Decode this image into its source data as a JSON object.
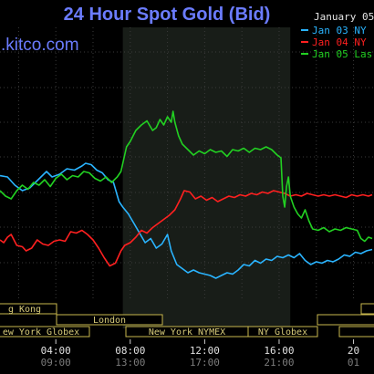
{
  "header": {
    "title": "24 Hour Spot Gold (Bid)",
    "brand": ".kitco.com",
    "date": "January 05"
  },
  "colors": {
    "background": "#000000",
    "title": "#6b7cff",
    "grid": "#3a3a3a",
    "shade": "#1a1f1a",
    "session_border": "#c9b84e",
    "session_text": "#d8cc7a"
  },
  "legend": [
    {
      "label": "Jan 03 NY",
      "color": "#2ab4ff"
    },
    {
      "label": "Jan 04 NY",
      "color": "#ff2020"
    },
    {
      "label": "Jan 05 Las",
      "color": "#22d022"
    }
  ],
  "sessions": [
    {
      "label": "g Kong"
    },
    {
      "label": "ew York Globex"
    },
    {
      "label": "London"
    },
    {
      "label": "New York NYMEX"
    },
    {
      "label": "NY Globex"
    }
  ],
  "chart_data": {
    "type": "line",
    "title": "24 Hour Spot Gold (Bid)",
    "x_unit": "hour of day (primary axis)",
    "xlim": [
      1.0,
      21.1
    ],
    "ylim": [
      0,
      100
    ],
    "y_note": "price axis unlabeled; values are relative",
    "grid": true,
    "legend_position": "top-right",
    "shaded_range": [
      7.6,
      16.6
    ],
    "tick_hours": [
      4,
      8,
      12,
      16,
      20
    ],
    "ticks_primary": [
      "04:00",
      "08:00",
      "12:00",
      "16:00",
      "20"
    ],
    "ticks_secondary": [
      "09:00",
      "13:00",
      "17:00",
      "21:00",
      "01"
    ],
    "series": [
      {
        "name": "Jan 03 NY",
        "color": "#2ab4ff",
        "points": [
          [
            1.0,
            75
          ],
          [
            1.4,
            74
          ],
          [
            1.8,
            68
          ],
          [
            2.2,
            64
          ],
          [
            2.6,
            66
          ],
          [
            2.9,
            70
          ],
          [
            3.2,
            74
          ],
          [
            3.5,
            78
          ],
          [
            3.8,
            74
          ],
          [
            4.2,
            76
          ],
          [
            4.6,
            80
          ],
          [
            5.0,
            79
          ],
          [
            5.4,
            82
          ],
          [
            5.6,
            84
          ],
          [
            5.9,
            83
          ],
          [
            6.2,
            79
          ],
          [
            6.5,
            77
          ],
          [
            6.8,
            72
          ],
          [
            7.1,
            70
          ],
          [
            7.4,
            56
          ],
          [
            7.6,
            52
          ],
          [
            7.9,
            47
          ],
          [
            8.2,
            40
          ],
          [
            8.5,
            33
          ],
          [
            8.8,
            26
          ],
          [
            9.1,
            29
          ],
          [
            9.4,
            22
          ],
          [
            9.7,
            25
          ],
          [
            10.0,
            32
          ],
          [
            10.2,
            20
          ],
          [
            10.5,
            10
          ],
          [
            10.8,
            7
          ],
          [
            11.1,
            4
          ],
          [
            11.4,
            6
          ],
          [
            11.7,
            4
          ],
          [
            12.0,
            3
          ],
          [
            12.3,
            2
          ],
          [
            12.6,
            0
          ],
          [
            12.9,
            2
          ],
          [
            13.2,
            4
          ],
          [
            13.5,
            3
          ],
          [
            13.8,
            6
          ],
          [
            14.1,
            10
          ],
          [
            14.4,
            9
          ],
          [
            14.7,
            13
          ],
          [
            15.0,
            11
          ],
          [
            15.3,
            14
          ],
          [
            15.6,
            13
          ],
          [
            15.9,
            16
          ],
          [
            16.2,
            15
          ],
          [
            16.5,
            17
          ],
          [
            16.8,
            15
          ],
          [
            17.1,
            18
          ],
          [
            17.4,
            13
          ],
          [
            17.7,
            10
          ],
          [
            18.0,
            12
          ],
          [
            18.3,
            11
          ],
          [
            18.6,
            13
          ],
          [
            18.9,
            12
          ],
          [
            19.2,
            14
          ],
          [
            19.5,
            17
          ],
          [
            19.8,
            16
          ],
          [
            20.1,
            19
          ],
          [
            20.4,
            18
          ],
          [
            20.7,
            20
          ],
          [
            21.0,
            21
          ]
        ]
      },
      {
        "name": "Jan 04 NY",
        "color": "#ff2020",
        "points": [
          [
            1.0,
            28
          ],
          [
            1.2,
            26
          ],
          [
            1.4,
            30
          ],
          [
            1.6,
            32
          ],
          [
            1.9,
            24
          ],
          [
            2.2,
            23
          ],
          [
            2.4,
            20
          ],
          [
            2.7,
            22
          ],
          [
            3.0,
            28
          ],
          [
            3.3,
            25
          ],
          [
            3.6,
            24
          ],
          [
            3.9,
            27
          ],
          [
            4.2,
            28
          ],
          [
            4.5,
            27
          ],
          [
            4.8,
            34
          ],
          [
            5.1,
            33
          ],
          [
            5.4,
            35
          ],
          [
            5.7,
            32
          ],
          [
            6.0,
            28
          ],
          [
            6.3,
            22
          ],
          [
            6.6,
            15
          ],
          [
            6.9,
            9
          ],
          [
            7.2,
            11
          ],
          [
            7.5,
            20
          ],
          [
            7.7,
            24
          ],
          [
            8.0,
            26
          ],
          [
            8.3,
            30
          ],
          [
            8.6,
            35
          ],
          [
            8.9,
            33
          ],
          [
            9.2,
            37
          ],
          [
            9.5,
            40
          ],
          [
            9.8,
            43
          ],
          [
            10.1,
            46
          ],
          [
            10.4,
            50
          ],
          [
            10.7,
            58
          ],
          [
            10.9,
            64
          ],
          [
            11.2,
            63
          ],
          [
            11.5,
            58
          ],
          [
            11.8,
            60
          ],
          [
            12.1,
            57
          ],
          [
            12.4,
            59
          ],
          [
            12.7,
            56
          ],
          [
            13.0,
            58
          ],
          [
            13.3,
            60
          ],
          [
            13.6,
            59
          ],
          [
            13.9,
            61
          ],
          [
            14.2,
            60
          ],
          [
            14.5,
            62
          ],
          [
            14.8,
            61
          ],
          [
            15.1,
            63
          ],
          [
            15.4,
            62
          ],
          [
            15.7,
            64
          ],
          [
            16.0,
            63
          ],
          [
            16.3,
            62
          ],
          [
            16.6,
            60
          ],
          [
            16.9,
            61
          ],
          [
            17.2,
            60
          ],
          [
            17.5,
            62
          ],
          [
            17.8,
            61
          ],
          [
            18.1,
            60
          ],
          [
            18.4,
            61
          ],
          [
            18.7,
            60
          ],
          [
            19.0,
            61
          ],
          [
            19.3,
            60
          ],
          [
            19.6,
            59
          ],
          [
            19.9,
            61
          ],
          [
            20.2,
            60
          ],
          [
            20.5,
            61
          ],
          [
            20.8,
            60
          ],
          [
            21.0,
            61
          ]
        ]
      },
      {
        "name": "Jan 05 Las",
        "color": "#22d022",
        "points": [
          [
            1.0,
            64
          ],
          [
            1.3,
            60
          ],
          [
            1.6,
            58
          ],
          [
            1.9,
            64
          ],
          [
            2.2,
            68
          ],
          [
            2.5,
            65
          ],
          [
            2.8,
            70
          ],
          [
            3.1,
            68
          ],
          [
            3.4,
            72
          ],
          [
            3.7,
            67
          ],
          [
            4.0,
            73
          ],
          [
            4.3,
            76
          ],
          [
            4.6,
            72
          ],
          [
            4.9,
            75
          ],
          [
            5.2,
            74
          ],
          [
            5.5,
            78
          ],
          [
            5.8,
            77
          ],
          [
            6.1,
            73
          ],
          [
            6.4,
            71
          ],
          [
            6.7,
            74
          ],
          [
            7.0,
            70
          ],
          [
            7.3,
            74
          ],
          [
            7.5,
            78
          ],
          [
            7.8,
            96
          ],
          [
            8.0,
            100
          ],
          [
            8.3,
            108
          ],
          [
            8.6,
            112
          ],
          [
            8.9,
            115
          ],
          [
            9.2,
            108
          ],
          [
            9.4,
            110
          ],
          [
            9.6,
            116
          ],
          [
            9.8,
            112
          ],
          [
            10.0,
            118
          ],
          [
            10.2,
            114
          ],
          [
            10.3,
            122
          ],
          [
            10.4,
            114
          ],
          [
            10.6,
            104
          ],
          [
            10.8,
            98
          ],
          [
            11.1,
            94
          ],
          [
            11.4,
            90
          ],
          [
            11.7,
            93
          ],
          [
            12.0,
            91
          ],
          [
            12.3,
            94
          ],
          [
            12.6,
            92
          ],
          [
            12.9,
            93
          ],
          [
            13.2,
            89
          ],
          [
            13.5,
            94
          ],
          [
            13.8,
            93
          ],
          [
            14.1,
            95
          ],
          [
            14.4,
            92
          ],
          [
            14.7,
            95
          ],
          [
            15.0,
            94
          ],
          [
            15.3,
            96
          ],
          [
            15.6,
            94
          ],
          [
            15.9,
            90
          ],
          [
            16.1,
            88
          ],
          [
            16.2,
            60
          ],
          [
            16.3,
            52
          ],
          [
            16.4,
            67
          ],
          [
            16.5,
            74
          ],
          [
            16.6,
            60
          ],
          [
            16.8,
            52
          ],
          [
            17.0,
            47
          ],
          [
            17.2,
            44
          ],
          [
            17.4,
            50
          ],
          [
            17.6,
            42
          ],
          [
            17.8,
            36
          ],
          [
            18.1,
            35
          ],
          [
            18.4,
            37
          ],
          [
            18.7,
            34
          ],
          [
            19.0,
            36
          ],
          [
            19.3,
            35
          ],
          [
            19.6,
            37
          ],
          [
            19.9,
            36
          ],
          [
            20.2,
            35
          ],
          [
            20.4,
            29
          ],
          [
            20.6,
            27
          ],
          [
            20.8,
            30
          ],
          [
            21.0,
            29
          ]
        ]
      }
    ]
  }
}
